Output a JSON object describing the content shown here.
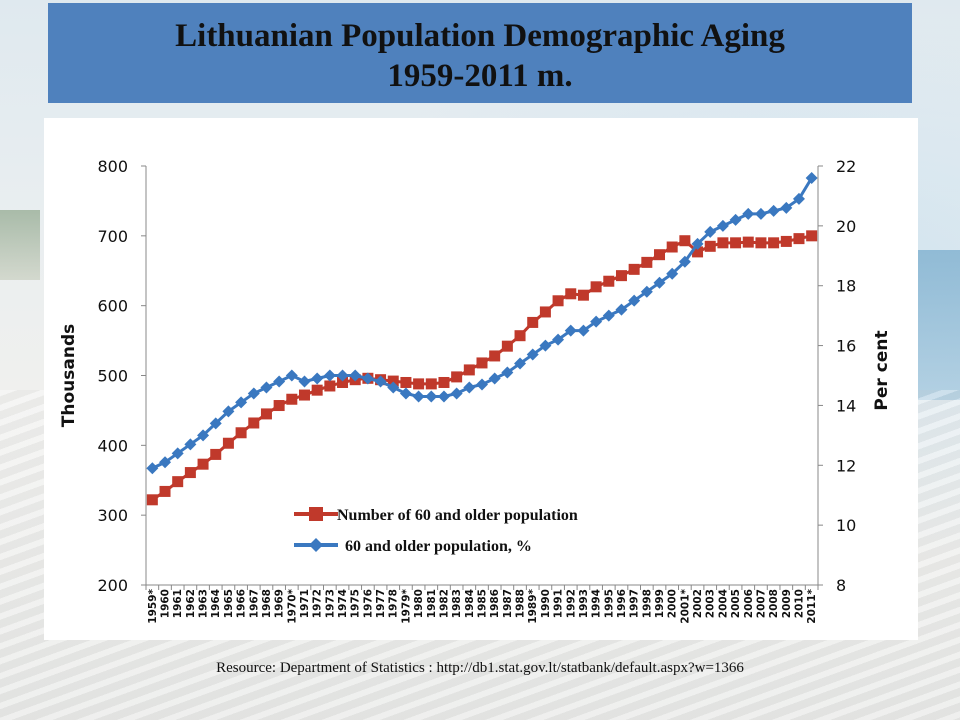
{
  "title": {
    "line1": "Lithuanian Population Demographic Aging",
    "line2": "1959-2011 m."
  },
  "source": "Resource: Department of Statistics : http://db1.stat.gov.lt/statbank/default.aspx?w=1366",
  "colors": {
    "title_bg": "#4f81bd",
    "series_count": "#c0392b",
    "series_percent": "#3a78c0"
  },
  "chart_data": {
    "type": "line",
    "x_categories": [
      "1959*",
      "1960",
      "1961",
      "1962",
      "1963",
      "1964",
      "1965",
      "1966",
      "1967",
      "1968",
      "1969",
      "1970*",
      "1971",
      "1972",
      "1973",
      "1974",
      "1975",
      "1976",
      "1977",
      "1978",
      "1979*",
      "1980",
      "1981",
      "1982",
      "1983",
      "1984",
      "1985",
      "1986",
      "1987",
      "1988",
      "1989*",
      "1990",
      "1991",
      "1992",
      "1993",
      "1994",
      "1995",
      "1996",
      "1997",
      "1998",
      "1999",
      "2000",
      "2001*",
      "2002",
      "2003",
      "2004",
      "2005",
      "2006",
      "2007",
      "2008",
      "2009",
      "2010",
      "2011*"
    ],
    "y_left": {
      "label": "Thousands",
      "min": 200,
      "max": 800,
      "ticks": [
        200,
        300,
        400,
        500,
        600,
        700,
        800
      ]
    },
    "y_right": {
      "label": "Per cent",
      "min": 8,
      "max": 22,
      "ticks": [
        8,
        10,
        12,
        14,
        16,
        18,
        20,
        22
      ]
    },
    "series": [
      {
        "name": "Number of 60 and older population",
        "axis": "left",
        "marker": "square",
        "color": "#c0392b",
        "values": [
          322,
          334,
          348,
          361,
          373,
          387,
          403,
          418,
          432,
          445,
          457,
          466,
          472,
          479,
          485,
          490,
          494,
          496,
          494,
          492,
          490,
          488,
          488,
          490,
          498,
          508,
          518,
          528,
          542,
          557,
          576,
          591,
          607,
          617,
          615,
          627,
          635,
          643,
          652,
          662,
          673,
          684,
          693,
          677,
          685,
          690,
          690,
          691,
          690,
          690,
          692,
          696,
          700
        ]
      },
      {
        "name": "60 and older population, %",
        "axis": "right",
        "marker": "diamond",
        "color": "#3a78c0",
        "values": [
          11.9,
          12.1,
          12.4,
          12.7,
          13.0,
          13.4,
          13.8,
          14.1,
          14.4,
          14.6,
          14.8,
          15.0,
          14.8,
          14.9,
          15.0,
          15.0,
          15.0,
          14.9,
          14.8,
          14.6,
          14.4,
          14.3,
          14.3,
          14.3,
          14.4,
          14.6,
          14.7,
          14.9,
          15.1,
          15.4,
          15.7,
          16.0,
          16.2,
          16.5,
          16.5,
          16.8,
          17.0,
          17.2,
          17.5,
          17.8,
          18.1,
          18.4,
          18.8,
          19.4,
          19.8,
          20.0,
          20.2,
          20.4,
          20.4,
          20.5,
          20.6,
          20.9,
          21.6
        ]
      }
    ],
    "legend": {
      "position": "center-bottom"
    },
    "grid": false
  }
}
